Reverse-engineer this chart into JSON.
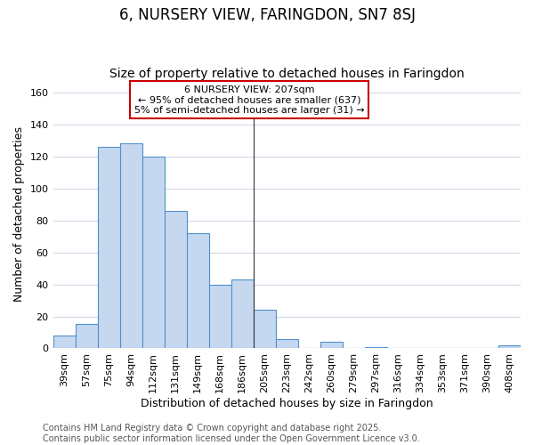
{
  "title": "6, NURSERY VIEW, FARINGDON, SN7 8SJ",
  "subtitle": "Size of property relative to detached houses in Faringdon",
  "xlabel": "Distribution of detached houses by size in Faringdon",
  "ylabel": "Number of detached properties",
  "categories": [
    "39sqm",
    "57sqm",
    "75sqm",
    "94sqm",
    "112sqm",
    "131sqm",
    "149sqm",
    "168sqm",
    "186sqm",
    "205sqm",
    "223sqm",
    "242sqm",
    "260sqm",
    "279sqm",
    "297sqm",
    "316sqm",
    "334sqm",
    "353sqm",
    "371sqm",
    "390sqm",
    "408sqm"
  ],
  "values": [
    8,
    15,
    126,
    128,
    120,
    86,
    72,
    40,
    43,
    24,
    6,
    0,
    4,
    0,
    1,
    0,
    0,
    0,
    0,
    0,
    2
  ],
  "bar_color": "#c5d8f0",
  "bar_edge_color": "#4f90cc",
  "vline_index": 9,
  "vline_color": "#333333",
  "ylim": [
    0,
    168
  ],
  "yticks": [
    0,
    20,
    40,
    60,
    80,
    100,
    120,
    140,
    160
  ],
  "annotation_box_text": "6 NURSERY VIEW: 207sqm\n← 95% of detached houses are smaller (637)\n5% of semi-detached houses are larger (31) →",
  "annotation_box_facecolor": "#ffffff",
  "annotation_box_edgecolor": "#cc0000",
  "background_color": "#ffffff",
  "grid_color": "#d0daea",
  "title_fontsize": 12,
  "subtitle_fontsize": 10,
  "axis_label_fontsize": 9,
  "tick_fontsize": 8,
  "annotation_fontsize": 8,
  "footer_fontsize": 7,
  "footer_color": "#555555",
  "footer_text": "Contains HM Land Registry data © Crown copyright and database right 2025.\nContains public sector information licensed under the Open Government Licence v3.0."
}
